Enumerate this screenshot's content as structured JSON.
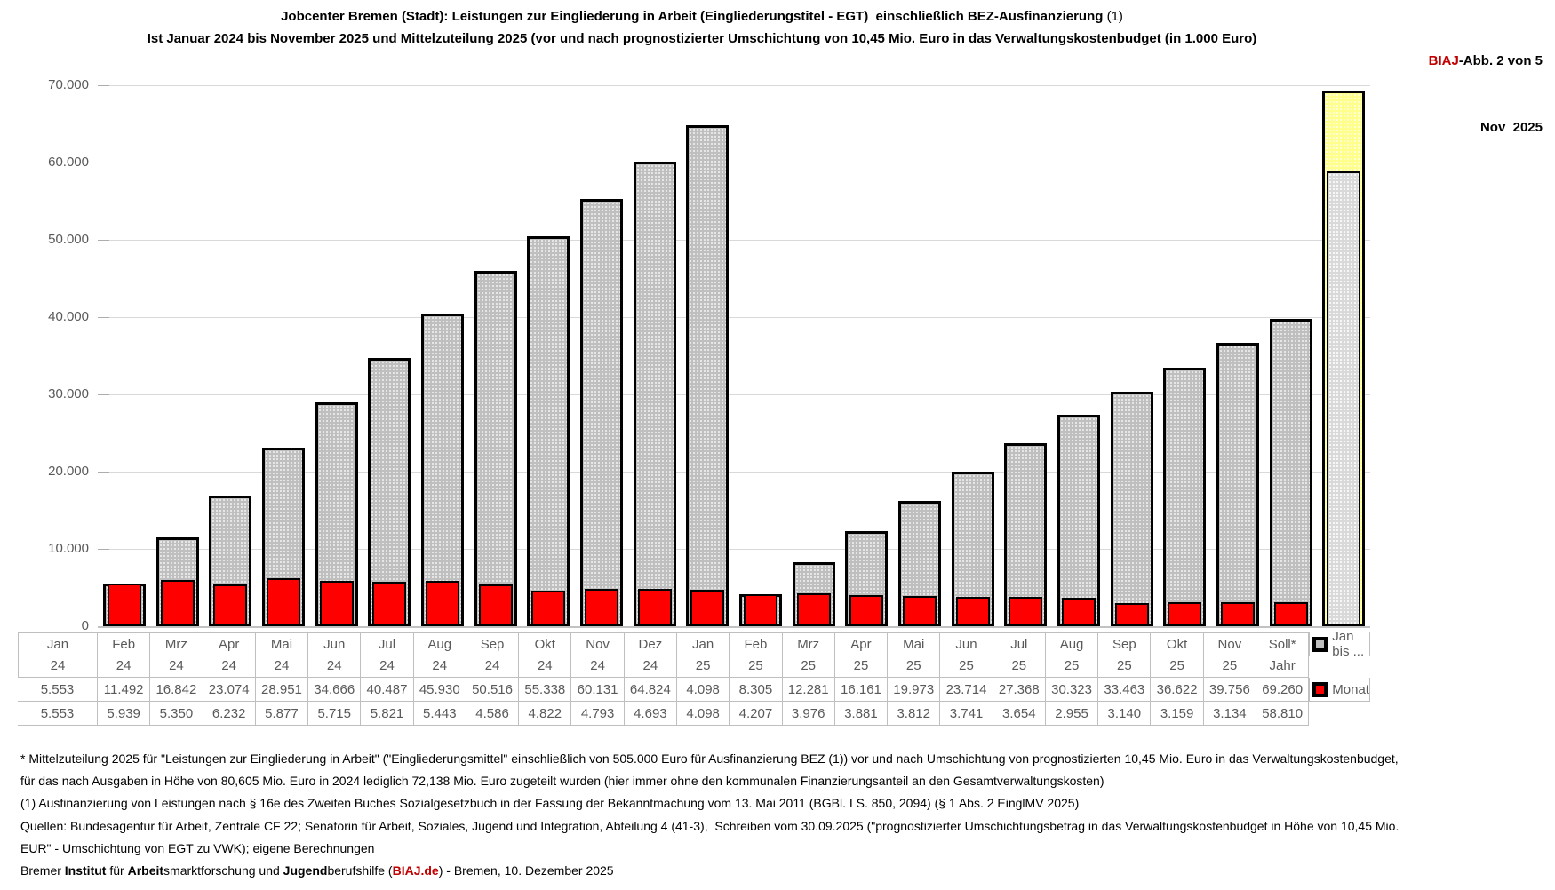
{
  "colors": {
    "brand_red": "#c00000",
    "bar_red": "#ff0000",
    "bar_gray": "#bfbfbf",
    "bar_yellow": "#ffff8c",
    "bar_soll_gray": "#d9d9d9",
    "gridline": "#d9d9d9",
    "axis_text": "#595959",
    "table_border": "#bfbfbf"
  },
  "header": {
    "title_line1_segments": [
      {
        "t": "Jobcenter Bremen (Stadt): Leistungen zur Eingliederung in Arbeit (Eingliederungstitel - EGT)  einschließlich BEZ-Ausfinanzierung ",
        "b": true
      },
      {
        "t": "(1)",
        "b": false
      }
    ],
    "title_line2": "Ist Januar 2024 bis November 2025 und Mittelzuteilung 2025 (vor und nach prognostizierter Umschichtung von 10,45 Mio. Euro in das Verwaltungskostenbudget (in 1.000 Euro)",
    "corner_segments": [
      {
        "t": "BIAJ",
        "b": true,
        "red": true
      },
      {
        "t": "-Abb. 2 von 5",
        "b": true
      }
    ],
    "corner_date": "Nov  2025"
  },
  "chart_data": {
    "type": "bar",
    "title": "Jobcenter Bremen (Stadt): Leistungen zur Eingliederung in Arbeit (Eingliederungstitel - EGT) einschließlich BEZ-Ausfinanzierung (1)",
    "subtitle": "Ist Januar 2024 bis November 2025 und Mittelzuteilung 2025 (vor und nach prognostizierter Umschichtung von 10,45 Mio. Euro in das Verwaltungskostenbudget (in 1.000 Euro)",
    "xlabel": "",
    "ylabel": "",
    "ylim": [
      0,
      70000
    ],
    "grid": true,
    "legend_position": "table-left",
    "yticks": [
      {
        "v": 70000,
        "label": "70.000"
      },
      {
        "v": 60000,
        "label": "60.000"
      },
      {
        "v": 50000,
        "label": "50.000"
      },
      {
        "v": 40000,
        "label": "40.000"
      },
      {
        "v": 30000,
        "label": "30.000"
      },
      {
        "v": 20000,
        "label": "20.000"
      },
      {
        "v": 10000,
        "label": "10.000"
      },
      {
        "v": 0,
        "label": "0"
      }
    ],
    "categories": [
      {
        "l1": "Jan",
        "l2": "24"
      },
      {
        "l1": "Feb",
        "l2": "24"
      },
      {
        "l1": "Mrz",
        "l2": "24"
      },
      {
        "l1": "Apr",
        "l2": "24"
      },
      {
        "l1": "Mai",
        "l2": "24"
      },
      {
        "l1": "Jun",
        "l2": "24"
      },
      {
        "l1": "Jul",
        "l2": "24"
      },
      {
        "l1": "Aug",
        "l2": "24"
      },
      {
        "l1": "Sep",
        "l2": "24"
      },
      {
        "l1": "Okt",
        "l2": "24"
      },
      {
        "l1": "Nov",
        "l2": "24"
      },
      {
        "l1": "Dez",
        "l2": "24"
      },
      {
        "l1": "Jan",
        "l2": "25"
      },
      {
        "l1": "Feb",
        "l2": "25"
      },
      {
        "l1": "Mrz",
        "l2": "25"
      },
      {
        "l1": "Apr",
        "l2": "25"
      },
      {
        "l1": "Mai",
        "l2": "25"
      },
      {
        "l1": "Jun",
        "l2": "25"
      },
      {
        "l1": "Jul",
        "l2": "25"
      },
      {
        "l1": "Aug",
        "l2": "25"
      },
      {
        "l1": "Sep",
        "l2": "25"
      },
      {
        "l1": "Okt",
        "l2": "25"
      },
      {
        "l1": "Nov",
        "l2": "25"
      },
      {
        "l1": "Soll*",
        "l2": "Jahr"
      }
    ],
    "series": [
      {
        "name": "Jan bis ...",
        "color": "#bfbfbf",
        "values": [
          5553,
          11492,
          16842,
          23074,
          28951,
          34666,
          40487,
          45930,
          50516,
          55338,
          60131,
          64824,
          4098,
          8305,
          12281,
          16161,
          19973,
          23714,
          27368,
          30323,
          33463,
          36622,
          39756,
          69260
        ],
        "labels": [
          "5.553",
          "11.492",
          "16.842",
          "23.074",
          "28.951",
          "34.666",
          "40.487",
          "45.930",
          "50.516",
          "55.338",
          "60.131",
          "64.824",
          "4.098",
          "8.305",
          "12.281",
          "16.161",
          "19.973",
          "23.714",
          "27.368",
          "30.323",
          "33.463",
          "36.622",
          "39.756",
          "69.260"
        ]
      },
      {
        "name": "Monat",
        "color": "#ff0000",
        "values": [
          5553,
          5939,
          5350,
          6232,
          5877,
          5715,
          5821,
          5443,
          4586,
          4822,
          4793,
          4693,
          4098,
          4207,
          3976,
          3881,
          3812,
          3741,
          3654,
          2955,
          3140,
          3159,
          3134,
          58810
        ],
        "labels": [
          "5.553",
          "5.939",
          "5.350",
          "6.232",
          "5.877",
          "5.715",
          "5.821",
          "5.443",
          "4.586",
          "4.822",
          "4.793",
          "4.693",
          "4.098",
          "4.207",
          "3.976",
          "3.881",
          "3.812",
          "3.741",
          "3.654",
          "2.955",
          "3.140",
          "3.159",
          "3.134",
          "58.810"
        ]
      }
    ],
    "special_last_category": {
      "label": "Soll* Jahr",
      "cumulative_color": "#ffff8c",
      "month_color": "#d9d9d9"
    }
  },
  "footnotes": {
    "lines": [
      "* Mittelzuteilung 2025 für \"Leistungen zur Eingliederung in Arbeit\" (\"Eingliederungsmittel\" einschließlich von 505.000 Euro für Ausfinanzierung BEZ (1)) vor und nach Umschichtung von prognostizierten 10,45 Mio. Euro in das Verwaltungskostenbudget,",
      "für das nach Ausgaben in Höhe von 80,605 Mio. Euro in 2024 lediglich 72,138 Mio. Euro zugeteilt wurden (hier immer ohne den kommunalen Finanzierungsanteil an den Gesamtverwaltungskosten)",
      "(1) Ausfinanzierung von Leistungen nach § 16e des Zweiten Buches Sozialgesetzbuch in der Fassung der Bekanntmachung vom 13. Mai 2011 (BGBl. I S. 850, 2094) (§ 1 Abs. 2 EinglMV 2025)",
      "Quellen: Bundesagentur für Arbeit, Zentrale CF 22; Senatorin für Arbeit, Soziales, Jugend und Integration, Abteilung 4 (41-3),  Schreiben vom 30.09.2025 (\"prognostizierter Umschichtungsbetrag in das Verwaltungskostenbudget in Höhe von 10,45 Mio.",
      "EUR\" - Umschichtung von EGT zu VWK); eigene Berechnungen"
    ],
    "credit_segments": [
      {
        "t": "Bremer ",
        "b": false
      },
      {
        "t": "Institut",
        "b": true
      },
      {
        "t": " für ",
        "b": false
      },
      {
        "t": "Arbeit",
        "b": true
      },
      {
        "t": "smarktforschung und ",
        "b": false
      },
      {
        "t": "Jugend",
        "b": true
      },
      {
        "t": "berufshilfe (",
        "b": false
      },
      {
        "t": "BIAJ.de",
        "b": true,
        "red": true
      },
      {
        "t": ") - Bremen, 10. Dezember 2025",
        "b": false
      }
    ]
  }
}
